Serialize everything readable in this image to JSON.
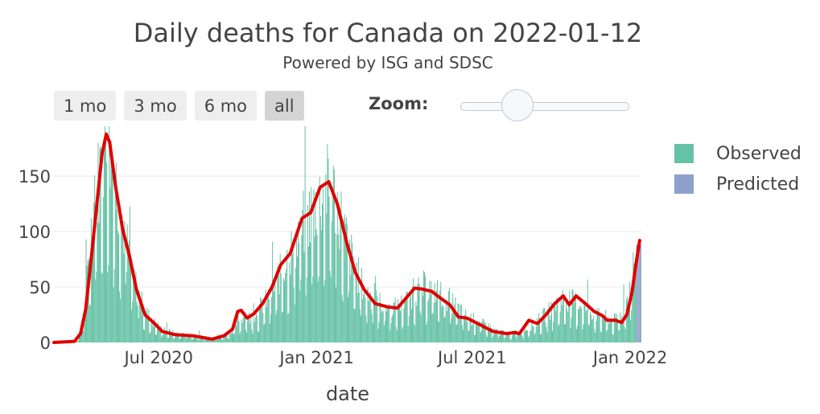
{
  "header": {
    "title": "Daily deaths for Canada on 2022-01-12",
    "subtitle": "Powered by ISG and SDSC"
  },
  "controls": {
    "range_buttons": [
      "1 mo",
      "3 mo",
      "6 mo",
      "all"
    ],
    "active_button": "all",
    "zoom_label": "Zoom:",
    "zoom_level": 0.3
  },
  "legend": {
    "observed": "Observed",
    "predicted": "Predicted"
  },
  "colors": {
    "observed": "#66c2a5",
    "predicted": "#8da0cb",
    "trend": "#e00000",
    "grid": "#e8e8e8"
  },
  "chart_data": {
    "type": "bar",
    "x_range": [
      "2020-03-01",
      "2022-01-14"
    ],
    "ylim": [
      0,
      195
    ],
    "xlabel": "date",
    "ylabel": "",
    "yticks": [
      0,
      50,
      100,
      150
    ],
    "xticks": [
      {
        "date": "2020-07-01",
        "label": "Jul 2020"
      },
      {
        "date": "2021-01-01",
        "label": "Jan 2021"
      },
      {
        "date": "2021-07-01",
        "label": "Jul 2021"
      },
      {
        "date": "2022-01-01",
        "label": "Jan 2022"
      }
    ],
    "grid": true,
    "legend_position": "right",
    "observed_curve": [
      [
        "2020-03-01",
        0
      ],
      [
        "2020-03-20",
        1
      ],
      [
        "2020-03-28",
        3
      ],
      [
        "2020-04-02",
        12
      ],
      [
        "2020-04-08",
        55
      ],
      [
        "2020-04-14",
        110
      ],
      [
        "2020-04-20",
        140
      ],
      [
        "2020-04-26",
        172
      ],
      [
        "2020-05-02",
        190
      ],
      [
        "2020-05-08",
        160
      ],
      [
        "2020-05-14",
        135
      ],
      [
        "2020-05-20",
        108
      ],
      [
        "2020-05-26",
        82
      ],
      [
        "2020-06-01",
        60
      ],
      [
        "2020-06-08",
        42
      ],
      [
        "2020-06-15",
        28
      ],
      [
        "2020-06-25",
        18
      ],
      [
        "2020-07-05",
        12
      ],
      [
        "2020-07-20",
        8
      ],
      [
        "2020-08-10",
        6
      ],
      [
        "2020-09-01",
        5
      ],
      [
        "2020-09-15",
        7
      ],
      [
        "2020-09-25",
        12
      ],
      [
        "2020-10-01",
        20
      ],
      [
        "2020-10-08",
        25
      ],
      [
        "2020-10-15",
        22
      ],
      [
        "2020-10-25",
        30
      ],
      [
        "2020-11-05",
        40
      ],
      [
        "2020-11-15",
        55
      ],
      [
        "2020-11-25",
        72
      ],
      [
        "2020-12-05",
        88
      ],
      [
        "2020-12-15",
        105
      ],
      [
        "2020-12-25",
        118
      ],
      [
        "2021-01-05",
        130
      ],
      [
        "2021-01-12",
        140
      ],
      [
        "2021-01-20",
        135
      ],
      [
        "2021-01-28",
        115
      ],
      [
        "2021-02-05",
        90
      ],
      [
        "2021-02-15",
        65
      ],
      [
        "2021-02-25",
        48
      ],
      [
        "2021-03-10",
        38
      ],
      [
        "2021-03-25",
        32
      ],
      [
        "2021-04-05",
        32
      ],
      [
        "2021-04-15",
        38
      ],
      [
        "2021-04-25",
        46
      ],
      [
        "2021-05-05",
        50
      ],
      [
        "2021-05-15",
        48
      ],
      [
        "2021-05-25",
        44
      ],
      [
        "2021-06-05",
        38
      ],
      [
        "2021-06-15",
        30
      ],
      [
        "2021-06-25",
        23
      ],
      [
        "2021-07-10",
        18
      ],
      [
        "2021-07-25",
        12
      ],
      [
        "2021-08-10",
        8
      ],
      [
        "2021-08-25",
        9
      ],
      [
        "2021-09-05",
        14
      ],
      [
        "2021-09-15",
        20
      ],
      [
        "2021-09-25",
        26
      ],
      [
        "2021-10-05",
        34
      ],
      [
        "2021-10-15",
        40
      ],
      [
        "2021-10-25",
        38
      ],
      [
        "2021-11-05",
        34
      ],
      [
        "2021-11-15",
        28
      ],
      [
        "2021-11-25",
        24
      ],
      [
        "2021-12-05",
        22
      ],
      [
        "2021-12-15",
        20
      ],
      [
        "2021-12-25",
        30
      ],
      [
        "2022-01-01",
        55
      ],
      [
        "2022-01-07",
        80
      ],
      [
        "2022-01-12",
        95
      ]
    ],
    "predicted_range": [
      "2022-01-08",
      "2022-01-14"
    ],
    "predicted_value": 88,
    "trend_line": [
      [
        "2020-03-01",
        0
      ],
      [
        "2020-03-25",
        1
      ],
      [
        "2020-04-01",
        8
      ],
      [
        "2020-04-07",
        30
      ],
      [
        "2020-04-14",
        80
      ],
      [
        "2020-04-20",
        125
      ],
      [
        "2020-04-26",
        170
      ],
      [
        "2020-05-01",
        188
      ],
      [
        "2020-05-05",
        180
      ],
      [
        "2020-05-12",
        140
      ],
      [
        "2020-05-20",
        102
      ],
      [
        "2020-05-28",
        78
      ],
      [
        "2020-06-05",
        48
      ],
      [
        "2020-06-15",
        25
      ],
      [
        "2020-06-25",
        18
      ],
      [
        "2020-07-05",
        10
      ],
      [
        "2020-07-20",
        7
      ],
      [
        "2020-08-10",
        6
      ],
      [
        "2020-09-01",
        3
      ],
      [
        "2020-09-15",
        6
      ],
      [
        "2020-09-25",
        12
      ],
      [
        "2020-10-01",
        28
      ],
      [
        "2020-10-05",
        29
      ],
      [
        "2020-10-12",
        22
      ],
      [
        "2020-10-20",
        26
      ],
      [
        "2020-10-30",
        35
      ],
      [
        "2020-11-10",
        50
      ],
      [
        "2020-11-20",
        70
      ],
      [
        "2020-12-01",
        80
      ],
      [
        "2020-12-15",
        112
      ],
      [
        "2020-12-25",
        117
      ],
      [
        "2021-01-05",
        140
      ],
      [
        "2021-01-15",
        145
      ],
      [
        "2021-01-25",
        125
      ],
      [
        "2021-02-05",
        90
      ],
      [
        "2021-02-15",
        63
      ],
      [
        "2021-02-25",
        48
      ],
      [
        "2021-03-10",
        35
      ],
      [
        "2021-03-25",
        32
      ],
      [
        "2021-04-05",
        31
      ],
      [
        "2021-04-15",
        40
      ],
      [
        "2021-04-25",
        49
      ],
      [
        "2021-05-05",
        48
      ],
      [
        "2021-05-15",
        46
      ],
      [
        "2021-05-25",
        40
      ],
      [
        "2021-06-05",
        34
      ],
      [
        "2021-06-15",
        23
      ],
      [
        "2021-06-25",
        22
      ],
      [
        "2021-07-10",
        16
      ],
      [
        "2021-07-25",
        10
      ],
      [
        "2021-08-10",
        8
      ],
      [
        "2021-08-20",
        9
      ],
      [
        "2021-08-25",
        8
      ],
      [
        "2021-09-05",
        20
      ],
      [
        "2021-09-15",
        17
      ],
      [
        "2021-09-25",
        25
      ],
      [
        "2021-10-05",
        35
      ],
      [
        "2021-10-15",
        42
      ],
      [
        "2021-10-22",
        34
      ],
      [
        "2021-10-30",
        42
      ],
      [
        "2021-11-10",
        35
      ],
      [
        "2021-11-20",
        28
      ],
      [
        "2021-11-30",
        24
      ],
      [
        "2021-12-05",
        20
      ],
      [
        "2021-12-15",
        20
      ],
      [
        "2021-12-22",
        18
      ],
      [
        "2021-12-28",
        25
      ],
      [
        "2022-01-03",
        45
      ],
      [
        "2022-01-08",
        72
      ],
      [
        "2022-01-12",
        92
      ]
    ]
  }
}
